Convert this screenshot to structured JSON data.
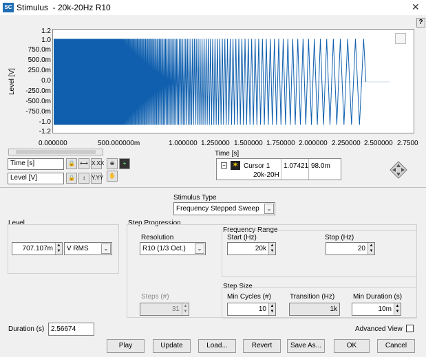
{
  "window": {
    "title": "Stimulus  - 20k-20Hz R10",
    "app_icon": "SC"
  },
  "help_label": "?",
  "plot": {
    "y_axis_label": "Level [V]",
    "x_axis_label": "Time [s]",
    "y_ticks": [
      "1.2",
      "1.0",
      "750.0m",
      "500.0m",
      "250.0m",
      "0.0",
      "-250.0m",
      "-500.0m",
      "-750.0m",
      "-1.0",
      "-1.2"
    ],
    "x_ticks": [
      "0.000000",
      "500.000000m",
      "1.000000",
      "1.250000",
      "1.500000",
      "1.750000",
      "2.000000",
      "2.250000",
      "2.500000",
      "2.7500"
    ],
    "trace_color": "#0f5fae"
  },
  "chart_data": {
    "type": "line",
    "title": "",
    "xlabel": "Time [s]",
    "ylabel": "Level [V]",
    "xlim": [
      0,
      2.75
    ],
    "ylim": [
      -1.2,
      1.2
    ],
    "series": [
      {
        "description": "stepped sine sweep 20k-20Hz",
        "x_start": 0.0,
        "x_end": 2.56674,
        "amplitude": 1.0
      }
    ]
  },
  "axis_controls": {
    "x_axis_select": "Time [s]",
    "y_axis_select": "Level [V]",
    "x_format_label": "X.XX",
    "y_format_label": "Y.YY"
  },
  "cursor": {
    "name": "Cursor 1",
    "x_value": "1.07421",
    "y_value": "98.0m",
    "plot_name": "20k-20H"
  },
  "stimulus": {
    "type_label": "Stimulus Type",
    "type_value": "Frequency Stepped Sweep"
  },
  "level": {
    "group_label": "Level",
    "value": "707.107m",
    "unit": "V RMS"
  },
  "step_progression": {
    "group_label": "Step Progression",
    "resolution_label": "Resolution",
    "resolution_value": "R10 (1/3 Oct.)",
    "steps_label": "Steps (#)",
    "steps_value": "31"
  },
  "frequency_range": {
    "group_label": "Frequency Range",
    "start_label": "Start (Hz)",
    "start_value": "20k",
    "stop_label": "Stop (Hz)",
    "stop_value": "20"
  },
  "step_size": {
    "group_label": "Step Size",
    "min_cycles_label": "Min Cycles (#)",
    "min_cycles_value": "10",
    "transition_label": "Transition (Hz)",
    "transition_value": "1k",
    "min_duration_label": "Min Duration (s)",
    "min_duration_value": "10m"
  },
  "duration": {
    "label": "Duration (s)",
    "value": "2.56674"
  },
  "advanced_view": {
    "label": "Advanced View",
    "checked": false
  },
  "buttons": {
    "play": "Play",
    "update": "Update",
    "load": "Load...",
    "revert": "Revert",
    "save_as": "Save As...",
    "ok": "OK",
    "cancel": "Cancel"
  }
}
